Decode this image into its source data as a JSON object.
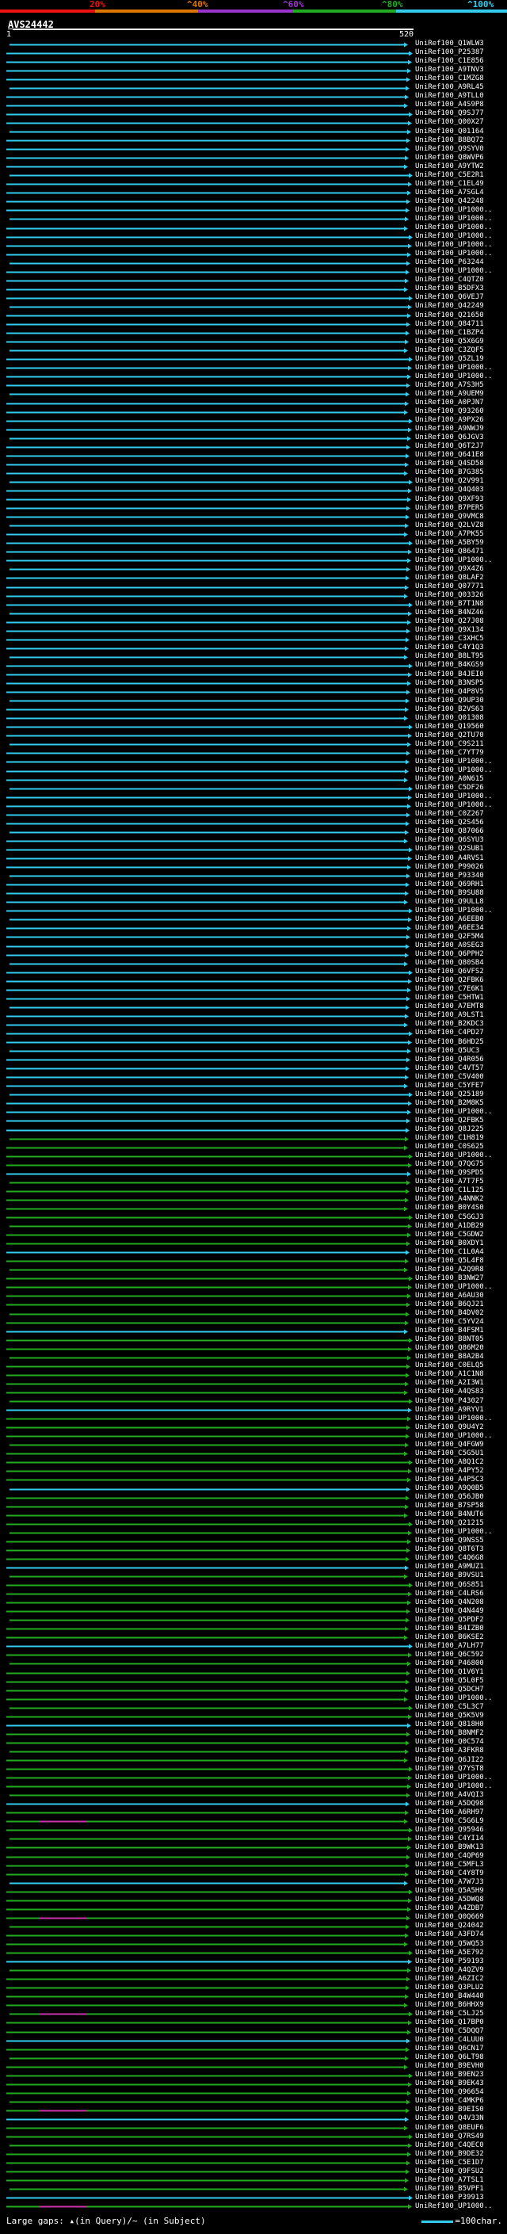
{
  "colors": {
    "red": "#ee1111",
    "orange": "#dd7700",
    "purple": "#9933cc",
    "green": "#22aa22",
    "cyan": "#33ccee",
    "magenta": "#cc33aa",
    "white": "#ffffff"
  },
  "header": {
    "ticks": [
      "20%",
      "^40%",
      "^60%",
      "^80%",
      "^100%"
    ],
    "query_id": "AVS24442"
  },
  "scale": {
    "start": "1",
    "end": "520"
  },
  "legend": {
    "text": "Large gaps: ▴(in Query)/~ (in Subject)",
    "scale_text": "=100char."
  },
  "hits": [
    "UniRef100_Q1WLW3",
    "UniRef100_P25387",
    "UniRef100_C1E856",
    "UniRef100_A9TNV3",
    "UniRef100_C1MZG8",
    "UniRef100_A9RL45",
    "UniRef100_A9TLL0",
    "UniRef100_A4S9P8",
    "UniRef100_Q9SJ77",
    "UniRef100_Q00X27",
    "UniRef100_Q01164",
    "UniRef100_B8BQ72",
    "UniRef100_Q9SYV0",
    "UniRef100_Q8WVP6",
    "UniRef100_A9YTW2",
    "UniRef100_C5E2R1",
    "UniRef100_C1EL49",
    "UniRef100_A7SGL4",
    "UniRef100_Q42248",
    "UniRef100_UP1000..",
    "UniRef100_UP1000..",
    "UniRef100_UP1000..",
    "UniRef100_UP1000..",
    "UniRef100_UP1000..",
    "UniRef100_UP1000..",
    "UniRef100_P63244",
    "UniRef100_UP1000..",
    "UniRef100_C4QTZ0",
    "UniRef100_B5DFX3",
    "UniRef100_Q6VEJ7",
    "UniRef100_Q42249",
    "UniRef100_Q21650",
    "UniRef100_Q84711",
    "UniRef100_C1BZP4",
    "UniRef100_Q5X6G9",
    "UniRef100_C3ZQF5",
    "UniRef100_Q5ZL19",
    "UniRef100_UP1000..",
    "UniRef100_UP1000..",
    "UniRef100_A7S3H5",
    "UniRef100_A9UEM9",
    "UniRef100_A0PJN7",
    "UniRef100_Q93260",
    "UniRef100_A9PX26",
    "UniRef100_A9NWJ9",
    "UniRef100_Q6JGV3",
    "UniRef100_Q6T2J7",
    "UniRef100_Q641E8",
    "UniRef100_Q4SD58",
    "UniRef100_B7G385",
    "UniRef100_Q2V991",
    "UniRef100_Q4Q403",
    "UniRef100_Q9XF93",
    "UniRef100_B7PER5",
    "UniRef100_Q9VMC8",
    "UniRef100_Q2LVZ8",
    "UniRef100_A7PK55",
    "UniRef100_A5BY59",
    "UniRef100_Q86471",
    "UniRef100_UP1000..",
    "UniRef100_Q9X4Z6",
    "UniRef100_Q8LAF2",
    "UniRef100_Q07771",
    "UniRef100_Q03326",
    "UniRef100_B7T1N8",
    "UniRef100_B4NZ46",
    "UniRef100_Q27J08",
    "UniRef100_Q9X134",
    "UniRef100_C3XHC5",
    "UniRef100_C4Y1Q3",
    "UniRef100_B8LT95",
    "UniRef100_B4KGS9",
    "UniRef100_B4JEI0",
    "UniRef100_B3NSP5",
    "UniRef100_Q4P8V5",
    "UniRef100_Q9UP30",
    "UniRef100_B2VS63",
    "UniRef100_Q01308",
    "UniRef100_Q19560",
    "UniRef100_Q2TU70",
    "UniRef100_C9S211",
    "UniRef100_C7YT79",
    "UniRef100_UP1000..",
    "UniRef100_UP1000..",
    "UniRef100_A0N615",
    "UniRef100_C5DF26",
    "UniRef100_UP1000..",
    "UniRef100_UP1000..",
    "UniRef100_C0Z267",
    "UniRef100_Q2S456",
    "UniRef100_Q87066",
    "UniRef100_Q6SYU3",
    "UniRef100_Q2SUB1",
    "UniRef100_A4RVS1",
    "UniRef100_P99026",
    "UniRef100_P93340",
    "UniRef100_Q69RH1",
    "UniRef100_B9SU88",
    "UniRef100_Q9ULL8",
    "UniRef100_UP1000..",
    "UniRef100_A6EEB0",
    "UniRef100_A6EE34",
    "UniRef100_Q2F5M4",
    "UniRef100_A0SEG3",
    "UniRef100_Q6PPH2",
    "UniRef100_Q80SB4",
    "UniRef100_Q6VFS2",
    "UniRef100_Q2FBK6",
    "UniRef100_C7E6K1",
    "UniRef100_C5HTW1",
    "UniRef100_A7EMT8",
    "UniRef100_A9LST1",
    "UniRef100_B2KDC3",
    "UniRef100_C4PD27",
    "UniRef100_B6HD25",
    "UniRef100_Q5UC3",
    "UniRef100_Q4R056",
    "UniRef100_C4VT57",
    "UniRef100_C5V400",
    "UniRef100_C5YFE7",
    "UniRef100_Q25189",
    "UniRef100_B2M8K5",
    "UniRef100_UP1000..",
    "UniRef100_Q2FBK5",
    "UniRef100_Q8J225",
    "UniRef100_C1H819",
    "UniRef100_C0S625",
    "UniRef100_UP1000..",
    "UniRef100_Q7QG75",
    "UniRef100_Q9SPD5",
    "UniRef100_A7T7F5",
    "UniRef100_C1L125",
    "UniRef100_A4NNK2",
    "UniRef100_B0Y4S0",
    "UniRef100_C5GGJ3",
    "UniRef100_A1DB29",
    "UniRef100_C5GDW2",
    "UniRef100_B0XDY1",
    "UniRef100_C1L0A4",
    "UniRef100_Q5L4F8",
    "UniRef100_A2Q9R8",
    "UniRef100_B3NW27",
    "UniRef100_UP1000..",
    "UniRef100_A6AU30",
    "UniRef100_B6QJ21",
    "UniRef100_B4DV02",
    "UniRef100_C5YV24",
    "UniRef100_B4FSM1",
    "UniRef100_B8NT05",
    "UniRef100_Q86M20",
    "UniRef100_B8A2B4",
    "UniRef100_C0ELQ5",
    "UniRef100_A1C1N8",
    "UniRef100_A2I3W1",
    "UniRef100_A4QS83",
    "UniRef100_P43027",
    "UniRef100_A9RYV1",
    "UniRef100_UP1000..",
    "UniRef100_Q9U4Y2",
    "UniRef100_UP1000..",
    "UniRef100_Q4FGW9",
    "UniRef100_C5G5U1",
    "UniRef100_A8Q1C2",
    "UniRef100_A4PY52",
    "UniRef100_A4P5C3",
    "UniRef100_A9Q0B5",
    "UniRef100_Q56JB0",
    "UniRef100_B7SP58",
    "UniRef100_B4NUT6",
    "UniRef100_Q21215",
    "UniRef100_UP1000..",
    "UniRef100_Q9NSS5",
    "UniRef100_Q8T6T3",
    "UniRef100_C4Q6G8",
    "UniRef100_A9MUZ1",
    "UniRef100_B9VSU1",
    "UniRef100_Q6S851",
    "UniRef100_C4LRS6",
    "UniRef100_Q4N208",
    "UniRef100_Q4N449",
    "UniRef100_Q5PDF2",
    "UniRef100_B4IZB0",
    "UniRef100_B6KSE2",
    "UniRef100_A7LH77",
    "UniRef100_Q6C592",
    "UniRef100_P46800",
    "UniRef100_Q1V6Y1",
    "UniRef100_Q5L0F5",
    "UniRef100_Q5DCH7",
    "UniRef100_UP1000..",
    "UniRef100_C5L3C7",
    "UniRef100_Q5K5V9",
    "UniRef100_Q818H0",
    "UniRef100_B8NMF2",
    "UniRef100_Q0C574",
    "UniRef100_A3FKR8",
    "UniRef100_Q6JI22",
    "UniRef100_Q7YST8",
    "UniRef100_UP1000..",
    "UniRef100_UP1000..",
    "UniRef100_A4VQI3",
    "UniRef100_A5DQ98",
    "UniRef100_A6RH97",
    "UniRef100_C5G6L9",
    "UniRef100_Q95946",
    "UniRef100_C4YI14",
    "UniRef100_B9WK13",
    "UniRef100_C4QP69",
    "UniRef100_C5MFL3",
    "UniRef100_C4Y8T9",
    "UniRef100_A7W7J3",
    "UniRef100_Q5A5H9",
    "UniRef100_A5DWQ8",
    "UniRef100_A4ZDB7",
    "UniRef100_Q0Q669",
    "UniRef100_Q24042",
    "UniRef100_A3FD74",
    "UniRef100_Q5WQ53",
    "UniRef100_A5E792",
    "UniRef100_P59193",
    "UniRef100_A4QZV9",
    "UniRef100_A6ZIC2",
    "UniRef100_Q3PLU2",
    "UniRef100_B4W440",
    "UniRef100_B6HHX9",
    "UniRef100_C5LJ25",
    "UniRef100_Q17BP0",
    "UniRef100_C5DQQ7",
    "UniRef100_C4LUU0",
    "UniRef100_Q6CN17",
    "UniRef100_Q6LT98",
    "UniRef100_B9EVH0",
    "UniRef100_B9EN23",
    "UniRef100_B9EK43",
    "UniRef100_Q96654",
    "UniRef100_C4MKP6",
    "UniRef100_B9EIS0",
    "UniRef100_Q4V33N",
    "UniRef100_Q8EUF6",
    "UniRef100_Q7RS49",
    "UniRef100_C4QEC0",
    "UniRef100_B9DE32",
    "UniRef100_C5E1D7",
    "UniRef100_Q9FSU2",
    "UniRef100_A7TSL1",
    "UniRef100_B5VPF1",
    "UniRef100_P39913",
    "UniRef100_UP1000.."
  ]
}
